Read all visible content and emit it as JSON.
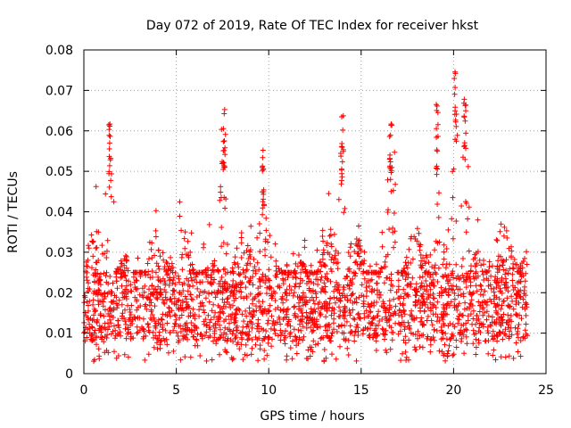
{
  "chart_data": {
    "type": "scatter",
    "title": "Day 072 of 2019, Rate Of TEC Index for receiver hkst",
    "xlabel": "GPS time / hours",
    "ylabel": "ROTI / TECUs",
    "xlim": [
      0,
      25
    ],
    "ylim": [
      0,
      0.08
    ],
    "x_ticks": [
      0,
      5,
      10,
      15,
      20,
      25
    ],
    "x_tick_labels": [
      "0",
      "5",
      "10",
      "15",
      "20",
      "25"
    ],
    "y_ticks": [
      0,
      0.01,
      0.02,
      0.03,
      0.04,
      0.05,
      0.06,
      0.07,
      0.08
    ],
    "y_tick_labels": [
      "0",
      "0.01",
      "0.02",
      "0.03",
      "0.04",
      "0.05",
      "0.06",
      "0.07",
      "0.08"
    ],
    "grid": true,
    "marker": "+",
    "marker_color": "#ff0000",
    "x_data_range": [
      0,
      24
    ],
    "y_data_range": [
      0.003,
      0.075
    ],
    "typical_band": [
      0.008,
      0.025
    ],
    "notable_peaks": [
      {
        "x": 1.4,
        "y": 0.062
      },
      {
        "x": 7.6,
        "y": 0.068
      },
      {
        "x": 9.7,
        "y": 0.056
      },
      {
        "x": 14.0,
        "y": 0.064
      },
      {
        "x": 16.6,
        "y": 0.064
      },
      {
        "x": 19.1,
        "y": 0.067
      },
      {
        "x": 20.1,
        "y": 0.075
      },
      {
        "x": 20.6,
        "y": 0.07
      }
    ]
  }
}
